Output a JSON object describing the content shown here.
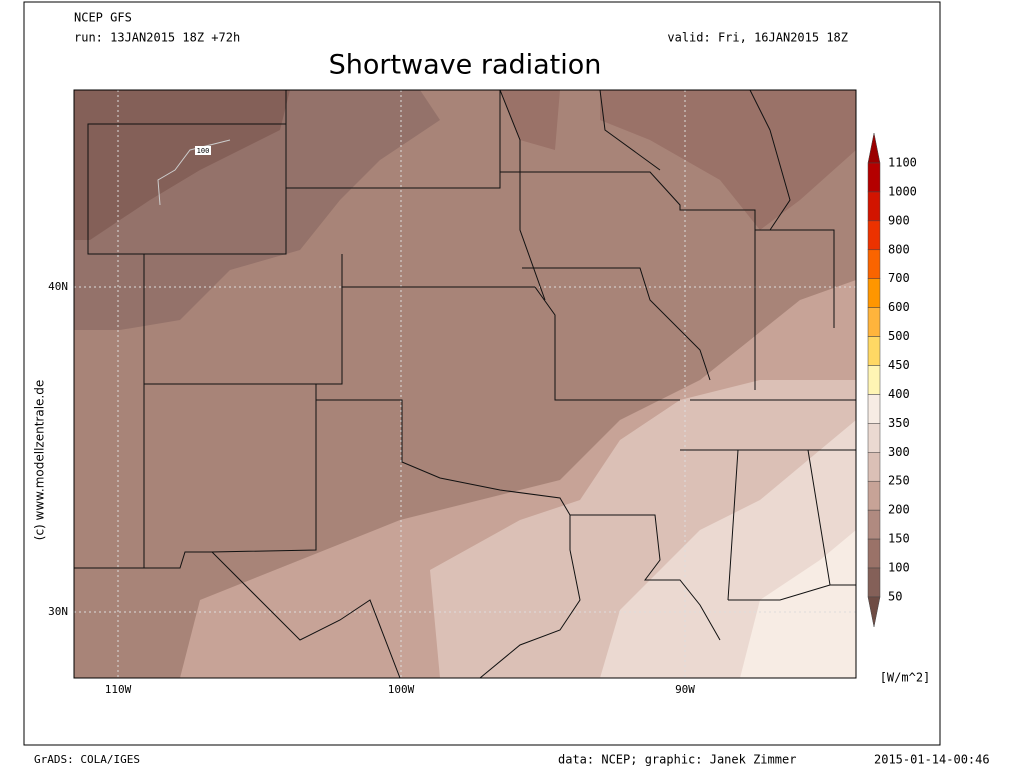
{
  "header": {
    "model": "NCEP GFS",
    "run": "run: 13JAN2015 18Z +72h",
    "valid": "valid: Fri, 16JAN2015 18Z",
    "title": "Shortwave radiation"
  },
  "map": {
    "lat_labels": [
      "40N",
      "30N"
    ],
    "lon_labels": [
      "110W",
      "100W",
      "90W"
    ],
    "credit": "(c) www.modellzentrale.de",
    "contour_label": "100"
  },
  "colorbar": {
    "levels": [
      1100,
      1000,
      900,
      800,
      700,
      600,
      500,
      450,
      400,
      350,
      300,
      250,
      200,
      150,
      100,
      50
    ],
    "colors": [
      "#9a0000",
      "#b40000",
      "#d21400",
      "#ec3200",
      "#fa6400",
      "#ff9600",
      "#ffb43c",
      "#ffd864",
      "#fff5b4",
      "#f7ece4",
      "#ebd9d1",
      "#dbc0b6",
      "#c7a397",
      "#b08a80",
      "#9a7268",
      "#846058",
      "#6e4c44"
    ],
    "unit": "[W/m^2]"
  },
  "footer": {
    "left": "GrADS: COLA/IGES",
    "center": "data: NCEP; graphic: Janek Zimmer",
    "right": "2015-01-14-00:46"
  }
}
